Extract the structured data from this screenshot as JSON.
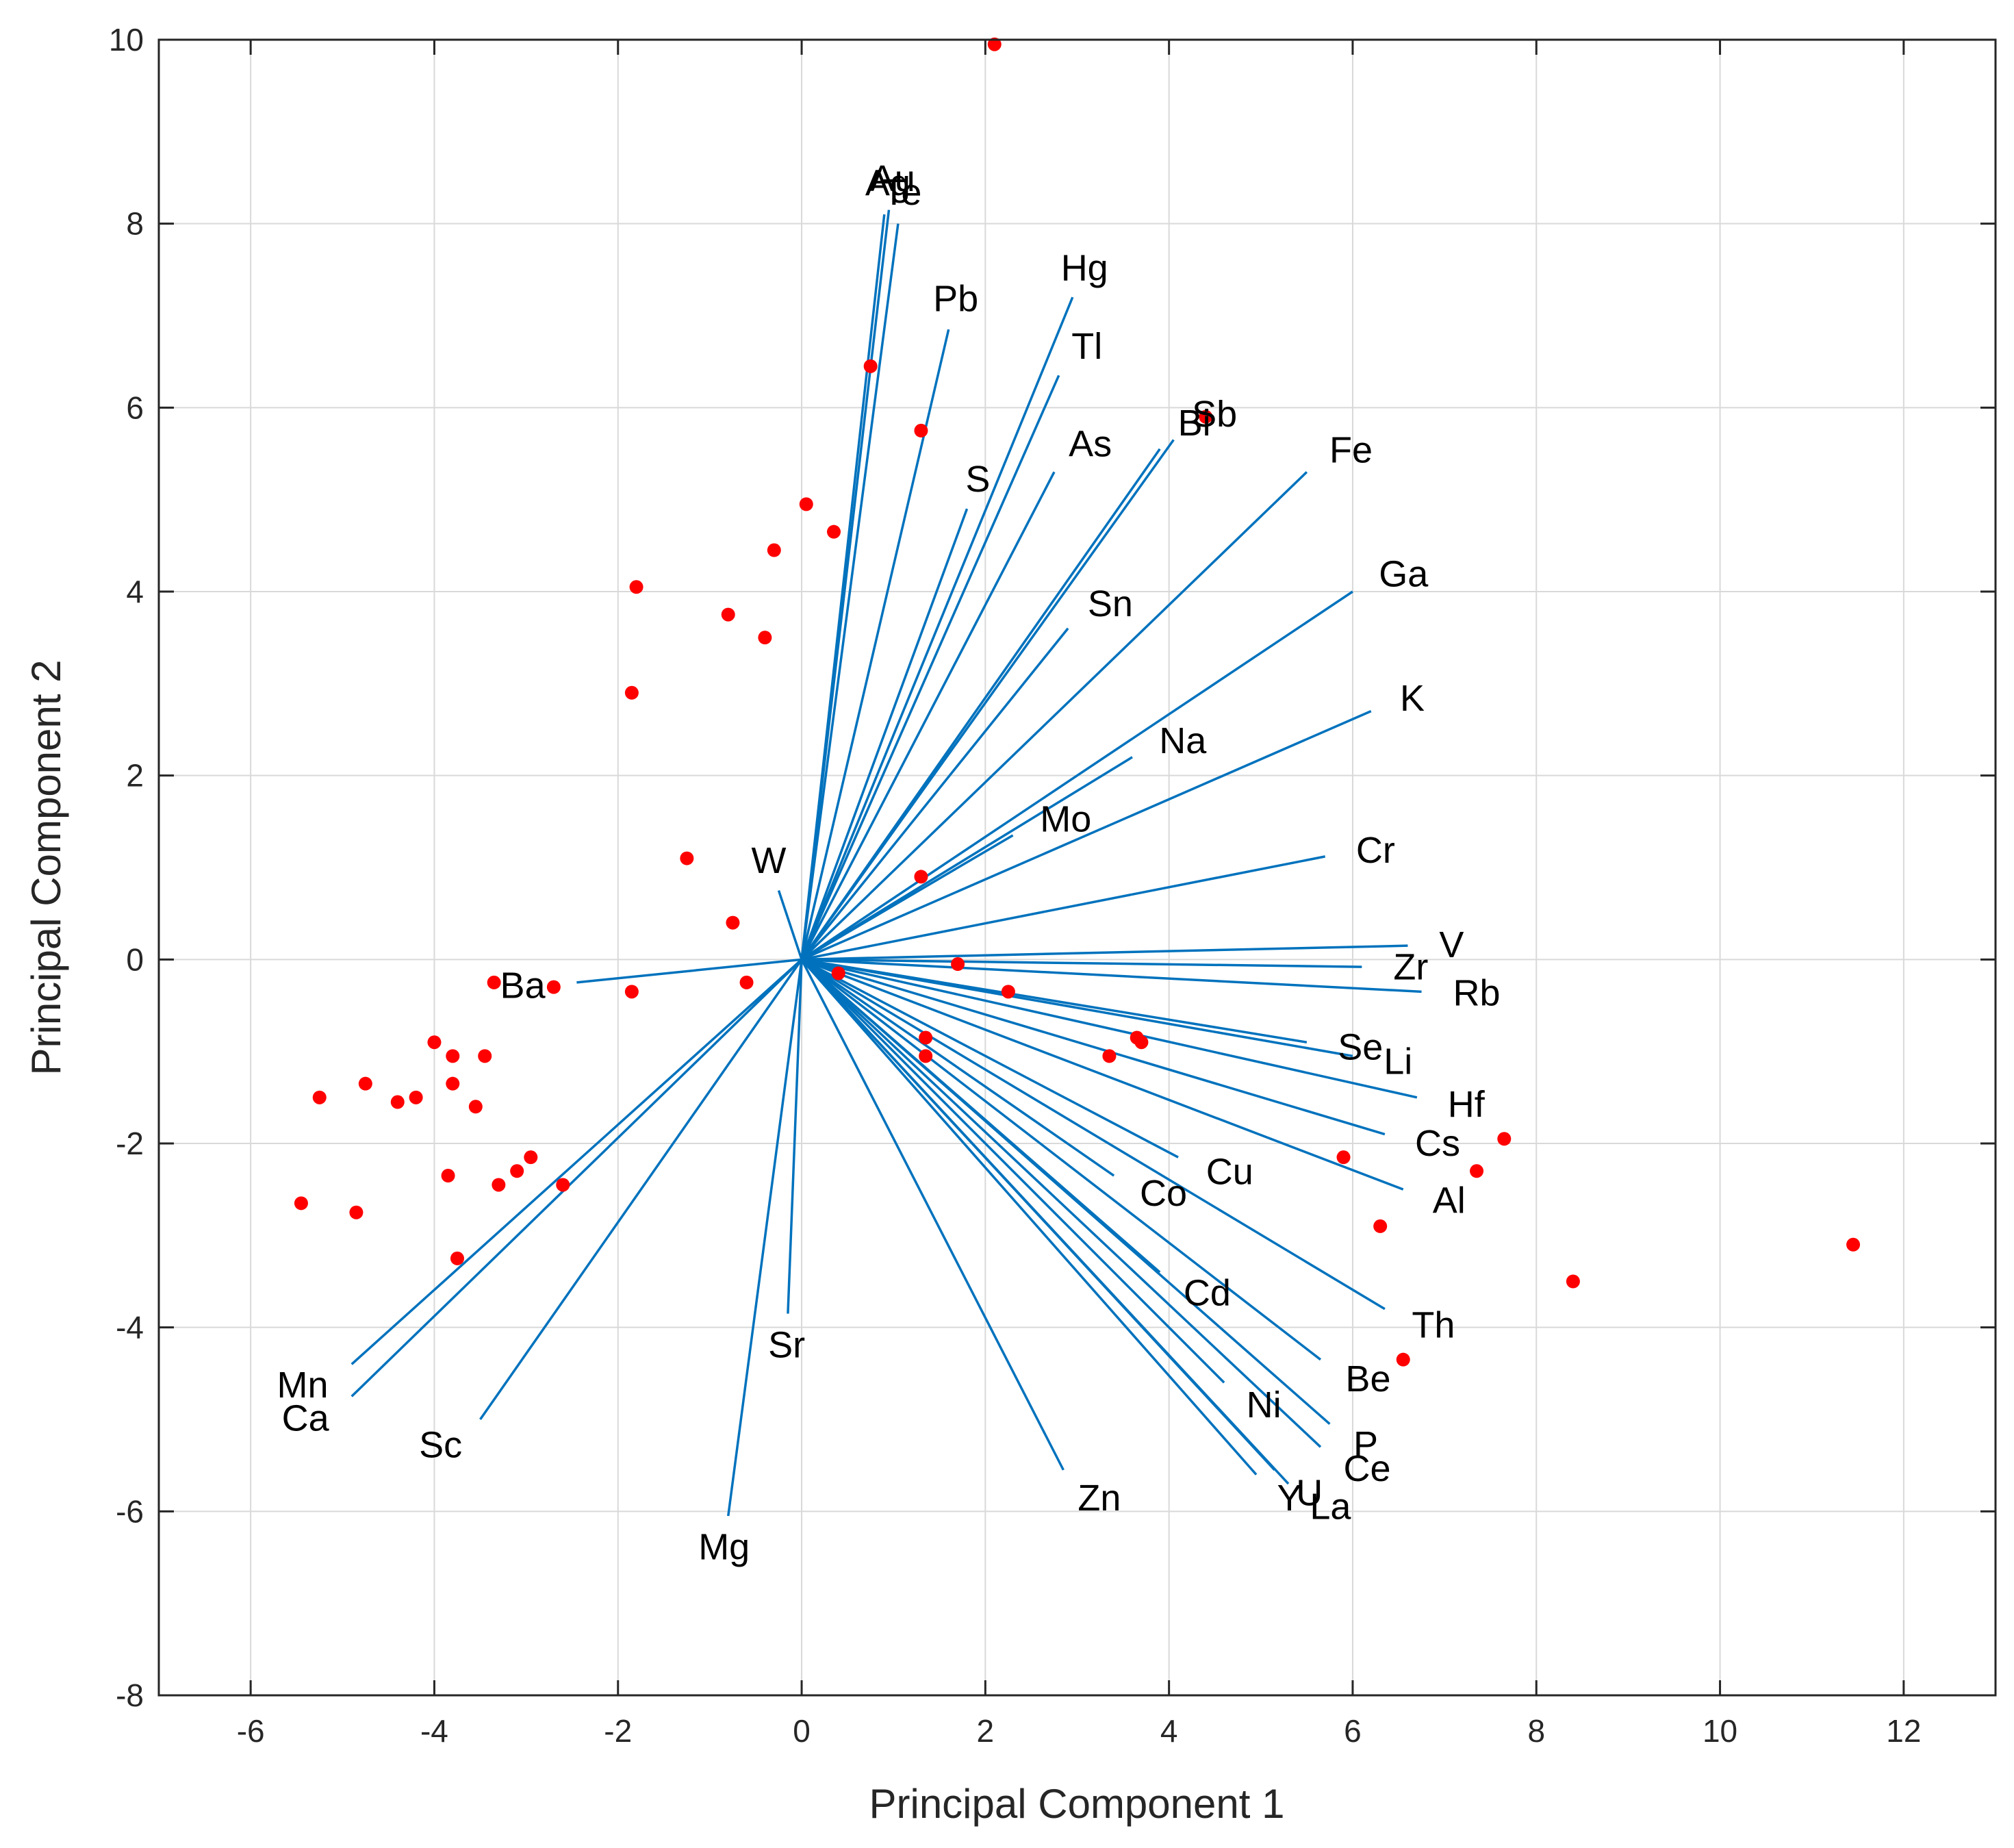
{
  "chart_data": {
    "type": "scatter",
    "subtype": "biplot",
    "xlabel": "Principal Component 1",
    "ylabel": "Principal Component 2",
    "xlim": [
      -7,
      13
    ],
    "ylim": [
      -8,
      10
    ],
    "xticks": [
      -6,
      -4,
      -2,
      0,
      2,
      4,
      6,
      8,
      10,
      12
    ],
    "yticks": [
      -8,
      -6,
      -4,
      -2,
      0,
      2,
      4,
      6,
      8,
      10
    ],
    "grid": true,
    "vector_color": "#0072BD",
    "point_color": "#FF0000",
    "grid_color": "#D9D9D9",
    "axis_color": "#262626",
    "vectors": [
      {
        "name": "Au",
        "x": 0.95,
        "y": 8.15
      },
      {
        "name": "Ag",
        "x": 0.9,
        "y": 8.1
      },
      {
        "name": "Te",
        "x": 1.05,
        "y": 8.0
      },
      {
        "name": "Hg",
        "x": 2.95,
        "y": 7.2
      },
      {
        "name": "Pb",
        "x": 1.6,
        "y": 6.85
      },
      {
        "name": "Tl",
        "x": 2.8,
        "y": 6.35
      },
      {
        "name": "Sb",
        "x": 4.05,
        "y": 5.65
      },
      {
        "name": "Bi",
        "x": 3.9,
        "y": 5.55
      },
      {
        "name": "As",
        "x": 2.75,
        "y": 5.3
      },
      {
        "name": "S",
        "x": 1.8,
        "y": 4.9
      },
      {
        "name": "Fe",
        "x": 5.5,
        "y": 5.3
      },
      {
        "name": "Sn",
        "x": 2.9,
        "y": 3.6
      },
      {
        "name": "Ga",
        "x": 6.0,
        "y": 4.0
      },
      {
        "name": "K",
        "x": 6.2,
        "y": 2.7
      },
      {
        "name": "Na",
        "x": 3.6,
        "y": 2.2
      },
      {
        "name": "Mo",
        "x": 2.3,
        "y": 1.35
      },
      {
        "name": "Cr",
        "x": 5.7,
        "y": 1.12
      },
      {
        "name": "W",
        "x": -0.25,
        "y": 0.75
      },
      {
        "name": "V",
        "x": 6.6,
        "y": 0.15
      },
      {
        "name": "Zr",
        "x": 6.1,
        "y": -0.08
      },
      {
        "name": "Rb",
        "x": 6.75,
        "y": -0.35
      },
      {
        "name": "Ba",
        "x": -2.45,
        "y": -0.25
      },
      {
        "name": "Li",
        "x": 6.0,
        "y": -1.05
      },
      {
        "name": "Se",
        "x": 5.5,
        "y": -0.9
      },
      {
        "name": "Hf",
        "x": 6.7,
        "y": -1.5
      },
      {
        "name": "Cs",
        "x": 6.35,
        "y": -1.9
      },
      {
        "name": "Al",
        "x": 6.55,
        "y": -2.5
      },
      {
        "name": "Cu",
        "x": 4.1,
        "y": -2.15
      },
      {
        "name": "Co",
        "x": 3.4,
        "y": -2.35
      },
      {
        "name": "Cd",
        "x": 3.9,
        "y": -3.4
      },
      {
        "name": "Th",
        "x": 6.35,
        "y": -3.8
      },
      {
        "name": "Be",
        "x": 5.65,
        "y": -4.35
      },
      {
        "name": "Ni",
        "x": 4.6,
        "y": -4.6
      },
      {
        "name": "P",
        "x": 5.75,
        "y": -5.05
      },
      {
        "name": "U",
        "x": 5.15,
        "y": -5.55
      },
      {
        "name": "Ce",
        "x": 5.65,
        "y": -5.3
      },
      {
        "name": "La",
        "x": 5.3,
        "y": -5.7
      },
      {
        "name": "Y",
        "x": 4.95,
        "y": -5.6
      },
      {
        "name": "Zn",
        "x": 2.85,
        "y": -5.55
      },
      {
        "name": "Sr",
        "x": -0.15,
        "y": -3.85
      },
      {
        "name": "Mg",
        "x": -0.8,
        "y": -6.05
      },
      {
        "name": "Sc",
        "x": -3.5,
        "y": -5.0
      },
      {
        "name": "Mn",
        "x": -4.9,
        "y": -4.4
      },
      {
        "name": "Ca",
        "x": -4.9,
        "y": -4.75
      }
    ],
    "points": [
      [
        2.1,
        9.95
      ],
      [
        0.75,
        6.45
      ],
      [
        1.3,
        5.75
      ],
      [
        4.4,
        5.9
      ],
      [
        0.05,
        4.95
      ],
      [
        0.35,
        4.65
      ],
      [
        -0.3,
        4.45
      ],
      [
        -1.8,
        4.05
      ],
      [
        -0.8,
        3.75
      ],
      [
        -0.4,
        3.5
      ],
      [
        -1.85,
        2.9
      ],
      [
        -1.25,
        1.1
      ],
      [
        1.3,
        0.9
      ],
      [
        -0.75,
        0.4
      ],
      [
        0.4,
        -0.15
      ],
      [
        1.7,
        -0.05
      ],
      [
        -0.6,
        -0.25
      ],
      [
        2.25,
        -0.35
      ],
      [
        -1.85,
        -0.35
      ],
      [
        -2.7,
        -0.3
      ],
      [
        -3.35,
        -0.25
      ],
      [
        1.35,
        -0.85
      ],
      [
        1.35,
        -1.05
      ],
      [
        3.35,
        -1.05
      ],
      [
        3.65,
        -0.85
      ],
      [
        3.7,
        -0.9
      ],
      [
        -4.0,
        -0.9
      ],
      [
        -3.8,
        -1.05
      ],
      [
        -3.45,
        -1.05
      ],
      [
        -3.8,
        -1.35
      ],
      [
        -4.75,
        -1.35
      ],
      [
        -5.25,
        -1.5
      ],
      [
        -4.4,
        -1.55
      ],
      [
        -4.2,
        -1.5
      ],
      [
        -3.55,
        -1.6
      ],
      [
        5.9,
        -2.15
      ],
      [
        7.65,
        -1.95
      ],
      [
        7.35,
        -2.3
      ],
      [
        -2.95,
        -2.15
      ],
      [
        -3.1,
        -2.3
      ],
      [
        -3.85,
        -2.35
      ],
      [
        -3.3,
        -2.45
      ],
      [
        -2.6,
        -2.45
      ],
      [
        6.3,
        -2.9
      ],
      [
        -5.45,
        -2.65
      ],
      [
        -4.85,
        -2.75
      ],
      [
        -3.75,
        -3.25
      ],
      [
        8.4,
        -3.5
      ],
      [
        11.45,
        -3.1
      ],
      [
        6.55,
        -4.35
      ]
    ]
  }
}
